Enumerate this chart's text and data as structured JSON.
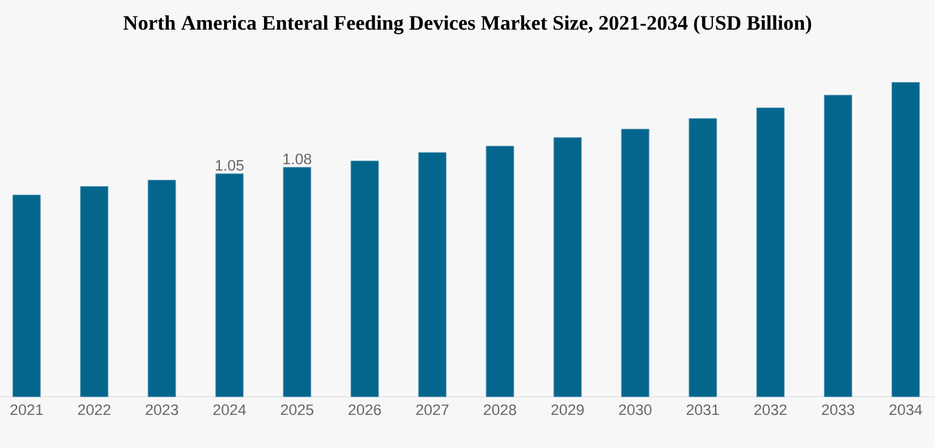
{
  "chart_data": {
    "type": "bar",
    "title": "North America Enteral Feeding Devices Market Size, 2021-2034 (USD Billion)",
    "categories": [
      "2021",
      "2022",
      "2023",
      "2024",
      "2025",
      "2026",
      "2027",
      "2028",
      "2029",
      "2030",
      "2031",
      "2032",
      "2033",
      "2034"
    ],
    "values": [
      0.95,
      0.99,
      1.02,
      1.05,
      1.08,
      1.11,
      1.15,
      1.18,
      1.22,
      1.26,
      1.31,
      1.36,
      1.42,
      1.48
    ],
    "value_labels": [
      null,
      null,
      null,
      "1.05",
      "1.08",
      null,
      null,
      null,
      null,
      null,
      null,
      null,
      null,
      null
    ],
    "color": "#05668d"
  }
}
